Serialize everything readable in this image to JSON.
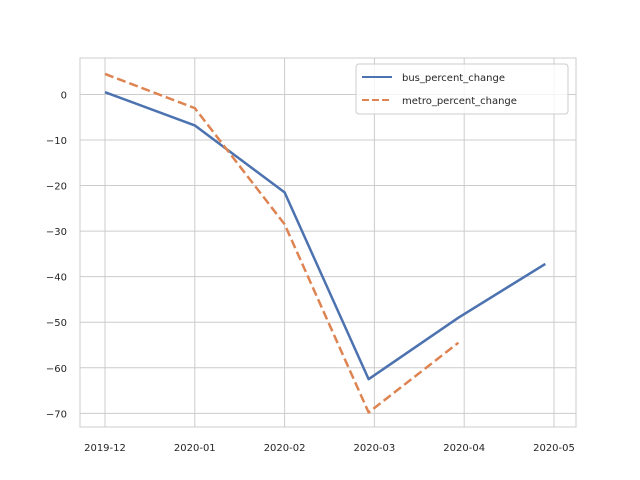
{
  "chart_data": {
    "type": "line",
    "title": "",
    "xlabel": "",
    "ylabel": "",
    "categories": [
      "2019-12",
      "2020-01",
      "2020-02",
      "2020-03",
      "2020-04",
      "2020-05"
    ],
    "ylim": [
      -73,
      8
    ],
    "yticks": [
      0,
      -10,
      -20,
      -30,
      -40,
      -50,
      -60,
      -70
    ],
    "ytick_labels": [
      "0",
      "−10",
      "−20",
      "−30",
      "−40",
      "−50",
      "−60",
      "−70"
    ],
    "grid": true,
    "legend_position": "top-right",
    "series": [
      {
        "name": "bus_percent_change",
        "style": "solid",
        "color": "#4c72b0",
        "x": [
          "2019-12-01",
          "2020-01-01",
          "2020-02-01",
          "2020-03-01",
          "2020-04-01",
          "2020-05-01"
        ],
        "values": [
          0.5,
          -6.8,
          -21.5,
          -62.5,
          -49.0,
          -37.2
        ]
      },
      {
        "name": "metro_percent_change",
        "style": "dashed",
        "color": "#dd8452",
        "x": [
          "2019-12-01",
          "2020-01-01",
          "2020-02-01",
          "2020-03-01",
          "2020-04-01"
        ],
        "values": [
          4.5,
          -3.0,
          -28.5,
          -69.8,
          -54.5
        ]
      }
    ]
  }
}
